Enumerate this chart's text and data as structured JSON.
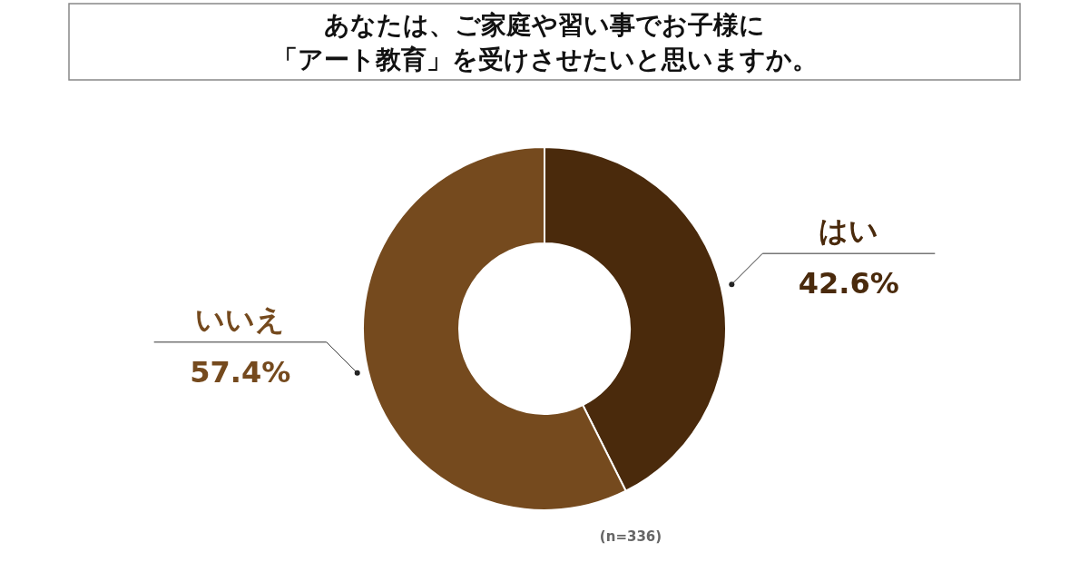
{
  "chart_data": {
    "type": "donut",
    "title": "あなたは、ご家庭や習い事でお子様に",
    "subtitle": "「アート教育」を受けさせたいと思いますか。",
    "categories": [
      "はい",
      "いいえ"
    ],
    "values": [
      42.6,
      57.4
    ],
    "value_labels": [
      "42.6%",
      "57.4%"
    ],
    "colors": [
      "#4a2a0c",
      "#754a1e"
    ],
    "annotations": [
      "(n=336)"
    ],
    "legend": false
  }
}
